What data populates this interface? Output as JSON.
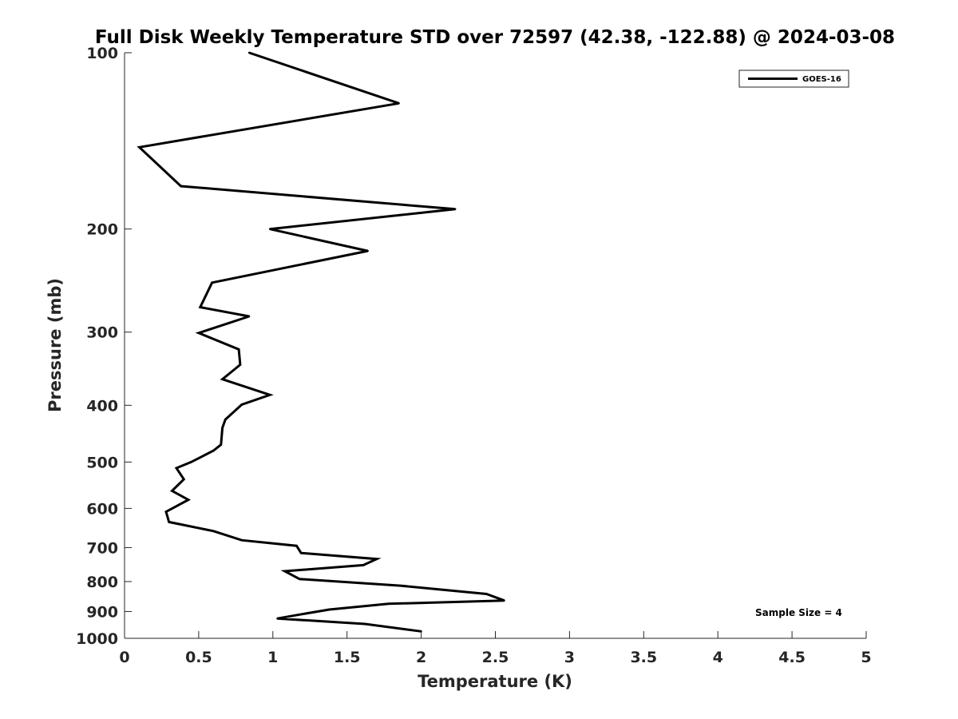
{
  "chart_data": {
    "type": "line",
    "title": "Full Disk Weekly Temperature STD over 72597 (42.38, -122.88) @ 2024-03-08",
    "xlabel": "Temperature (K)",
    "ylabel": "Pressure (mb)",
    "xlim": [
      0,
      5
    ],
    "ylim": [
      100,
      1000
    ],
    "y_scale": "log",
    "y_reversed": true,
    "x_ticks": [
      "0",
      "0.5",
      "1",
      "1.5",
      "2",
      "2.5",
      "3",
      "3.5",
      "4",
      "4.5",
      "5"
    ],
    "y_ticks": [
      "100",
      "200",
      "300",
      "400",
      "500",
      "600",
      "700",
      "800",
      "900",
      "1000"
    ],
    "grid": false,
    "legend_position": "top-right",
    "series": [
      {
        "name": "GOES-16",
        "color": "#000000",
        "x": [
          0.84,
          1.85,
          0.1,
          0.38,
          2.23,
          0.98,
          1.64,
          0.59,
          0.51,
          0.84,
          0.5,
          0.77,
          0.78,
          0.66,
          0.98,
          0.79,
          0.68,
          0.66,
          0.65,
          0.6,
          0.45,
          0.35,
          0.4,
          0.32,
          0.43,
          0.28,
          0.3,
          0.6,
          0.79,
          1.16,
          1.19,
          1.7,
          1.61,
          1.08,
          1.18,
          1.86,
          2.44,
          2.56,
          1.78,
          1.38,
          1.18,
          1.03,
          1.62,
          2.0
        ],
        "y": [
          100,
          122,
          145,
          169,
          185,
          200,
          218,
          247,
          272,
          282,
          301,
          321,
          341,
          361,
          384,
          399,
          423,
          437,
          467,
          478,
          500,
          512,
          535,
          560,
          580,
          608,
          633,
          656,
          680,
          695,
          715,
          732,
          750,
          768,
          792,
          813,
          840,
          862,
          873,
          893,
          911,
          925,
          945,
          973
        ]
      }
    ],
    "annotations": [
      "Sample Size = 4"
    ]
  }
}
